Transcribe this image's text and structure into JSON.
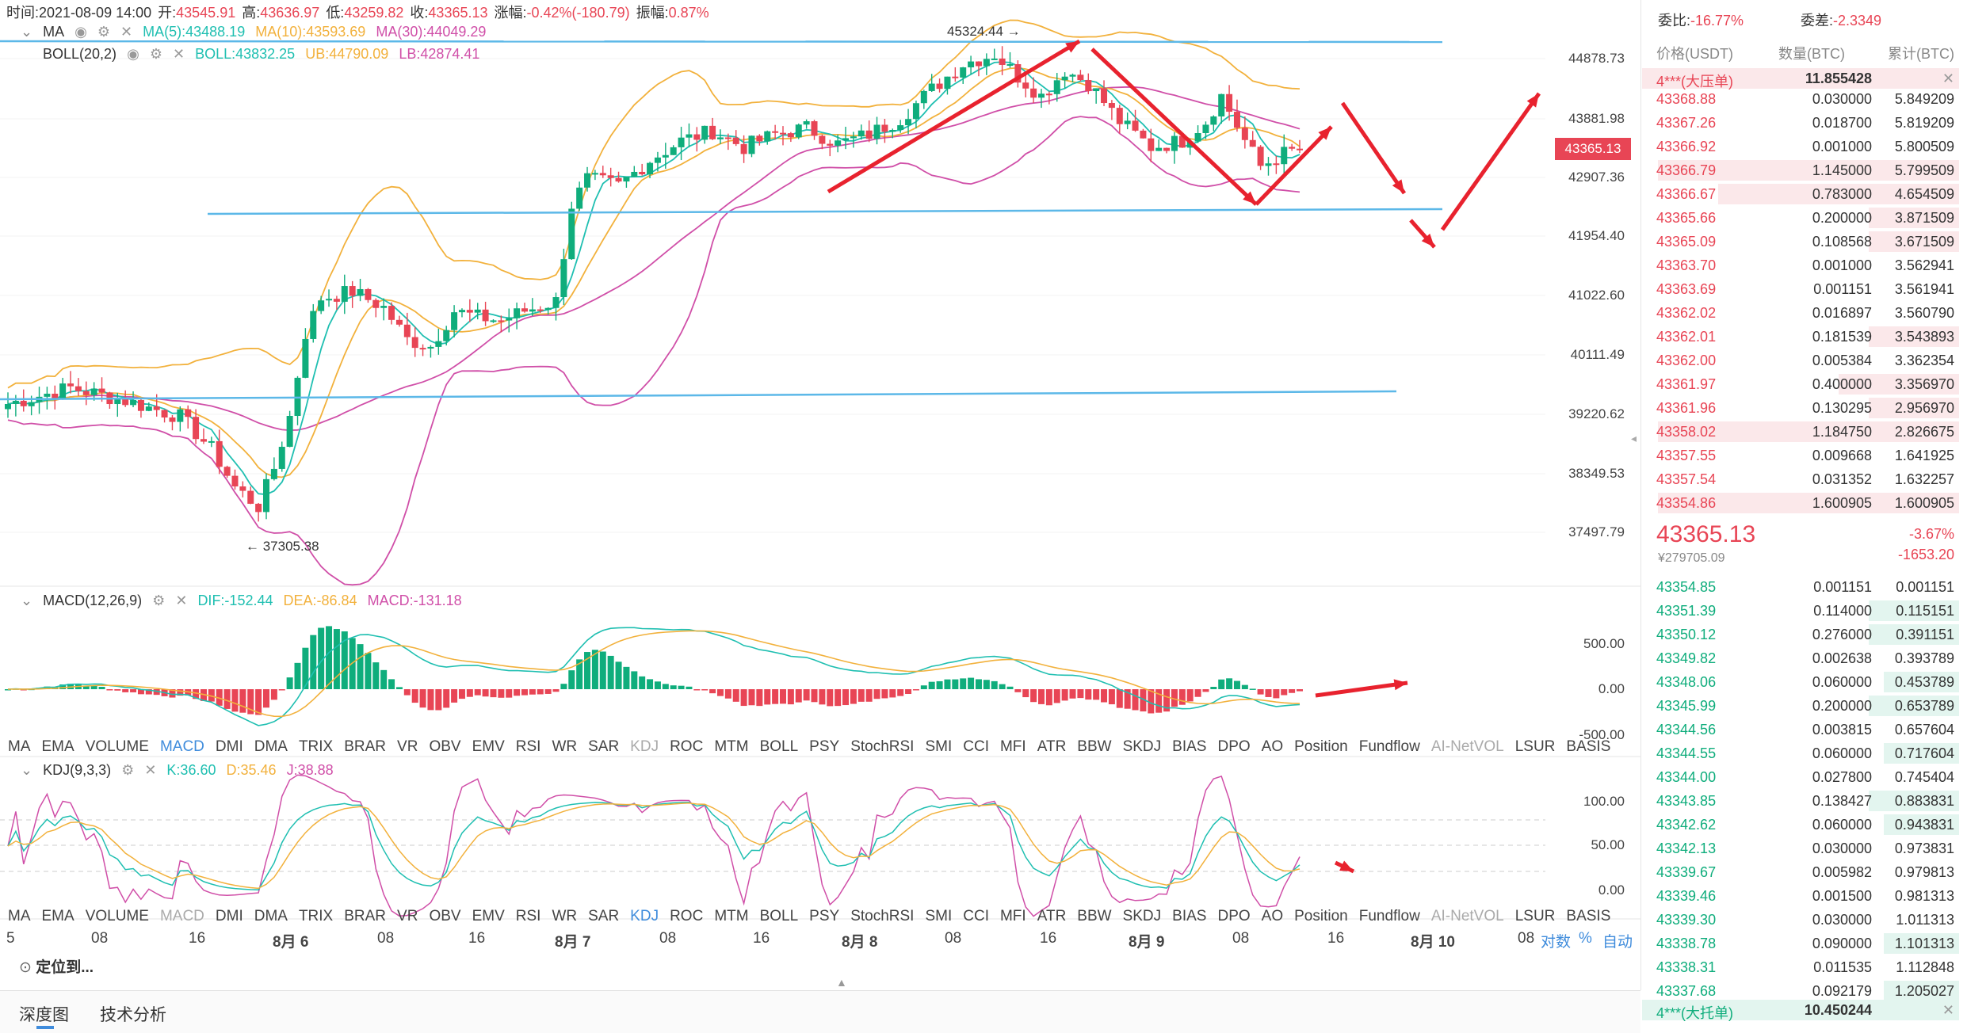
{
  "info_bar": {
    "time": "时间:2021-08-09 14:00",
    "open_label": "开:",
    "open": "43545.91",
    "high_label": "高:",
    "high": "43636.97",
    "low_label": "低:",
    "low": "43259.82",
    "close_label": "收:",
    "close": "43365.13",
    "change_label": "涨幅:",
    "change": "-0.42%(-180.79)",
    "amp_label": "振幅:",
    "amp": "0.87%"
  },
  "ma_legend": {
    "name": "MA",
    "ma5": "MA(5):43488.19",
    "ma10": "MA(10):43593.69",
    "ma30": "MA(30):44049.29"
  },
  "boll_legend": {
    "name": "BOLL(20,2)",
    "boll": "BOLL:43832.25",
    "ub": "UB:44790.09",
    "lb": "LB:42874.41"
  },
  "macd_legend": {
    "name": "MACD(12,26,9)",
    "dif": "DIF:-152.44",
    "dea": "DEA:-86.84",
    "macd": "MACD:-131.18"
  },
  "kdj_legend": {
    "name": "KDJ(9,3,3)",
    "k": "K:36.60",
    "d": "D:35.46",
    "j": "J:38.88"
  },
  "annotations": {
    "high": "45324.44 →",
    "low": "← 37305.38"
  },
  "price_axis": [
    "44878.73",
    "43881.98",
    "42907.36",
    "41954.40",
    "41022.60",
    "40111.49",
    "39220.62",
    "38349.53",
    "37497.79"
  ],
  "current_price_tag": "43365.13",
  "macd_axis": [
    "500.00",
    "0.00",
    "-500.00"
  ],
  "kdj_axis": [
    "100.00",
    "50.00",
    "0.00"
  ],
  "indicator_tabs": [
    "MA",
    "EMA",
    "VOLUME",
    "MACD",
    "DMI",
    "DMA",
    "TRIX",
    "BRAR",
    "VR",
    "OBV",
    "EMV",
    "RSI",
    "WR",
    "SAR",
    "KDJ",
    "ROC",
    "MTM",
    "BOLL",
    "PSY",
    "StochRSI",
    "SMI",
    "CCI",
    "MFI",
    "ATR",
    "BBW",
    "SKDJ",
    "BIAS",
    "DPO",
    "AO",
    "Position",
    "Fundflow",
    "AI-NetVOL",
    "LSUR",
    "BASIS"
  ],
  "time_axis": [
    "5",
    "08",
    "16",
    "8月 6",
    "08",
    "16",
    "8月 7",
    "08",
    "16",
    "8月 8",
    "08",
    "16",
    "8月 9",
    "08",
    "16",
    "8月 10",
    "08"
  ],
  "axis_controls": [
    "对数",
    "%",
    "自动"
  ],
  "locate_label": "定位到...",
  "bottom_tabs": [
    "深度图",
    "技术分析"
  ],
  "colors": {
    "up": "#0fad7c",
    "down": "#e84555",
    "accent": "#3f8cdc",
    "ma5": "#1fbfb1",
    "ma10": "#f2b13c",
    "ma30": "#d04fa8",
    "boll": "#5cb8e8"
  },
  "order_book": {
    "ratio_label": "委比:",
    "ratio": "-16.77%",
    "diff_label": "委差:",
    "diff": "-2.3349",
    "headers": [
      "价格(USDT)",
      "数量(BTC)",
      "累计(BTC)"
    ],
    "ask_wall": {
      "label": "4***(大压单)",
      "qty": "11.855428"
    },
    "asks": [
      {
        "price": "43368.88",
        "qty": "0.030000",
        "cum": "5.849209",
        "fill": 0
      },
      {
        "price": "43367.26",
        "qty": "0.018700",
        "cum": "5.819209",
        "fill": 0
      },
      {
        "price": "43366.92",
        "qty": "0.001000",
        "cum": "5.800509",
        "fill": 0
      },
      {
        "price": "43366.79",
        "qty": "1.145000",
        "cum": "5.799509",
        "fill": 1.0
      },
      {
        "price": "43366.67",
        "qty": "0.783000",
        "cum": "4.654509",
        "fill": 0.8
      },
      {
        "price": "43365.66",
        "qty": "0.200000",
        "cum": "3.871509",
        "fill": 0.3
      },
      {
        "price": "43365.09",
        "qty": "0.108568",
        "cum": "3.671509",
        "fill": 0.3
      },
      {
        "price": "43363.70",
        "qty": "0.001000",
        "cum": "3.562941",
        "fill": 0
      },
      {
        "price": "43363.69",
        "qty": "0.001151",
        "cum": "3.561941",
        "fill": 0
      },
      {
        "price": "43362.02",
        "qty": "0.016897",
        "cum": "3.560790",
        "fill": 0
      },
      {
        "price": "43362.01",
        "qty": "0.181539",
        "cum": "3.543893",
        "fill": 0.3
      },
      {
        "price": "43362.00",
        "qty": "0.005384",
        "cum": "3.362354",
        "fill": 0
      },
      {
        "price": "43361.97",
        "qty": "0.400000",
        "cum": "3.356970",
        "fill": 0.4
      },
      {
        "price": "43361.96",
        "qty": "0.130295",
        "cum": "2.956970",
        "fill": 0.3
      },
      {
        "price": "43358.02",
        "qty": "1.184750",
        "cum": "2.826675",
        "fill": 1.0
      },
      {
        "price": "43357.55",
        "qty": "0.009668",
        "cum": "1.641925",
        "fill": 0
      },
      {
        "price": "43357.54",
        "qty": "0.031352",
        "cum": "1.632257",
        "fill": 0
      },
      {
        "price": "43354.86",
        "qty": "1.600905",
        "cum": "1.600905",
        "fill": 1.0
      }
    ],
    "last_price": "43365.13",
    "last_change_pct": "-3.67%",
    "last_cny": "¥279705.09",
    "last_change_abs": "-1653.20",
    "bids": [
      {
        "price": "43354.85",
        "qty": "0.001151",
        "cum": "0.001151",
        "fill": 0
      },
      {
        "price": "43351.39",
        "qty": "0.114000",
        "cum": "0.115151",
        "fill": 0.3
      },
      {
        "price": "43350.12",
        "qty": "0.276000",
        "cum": "0.391151",
        "fill": 0.3
      },
      {
        "price": "43349.82",
        "qty": "0.002638",
        "cum": "0.393789",
        "fill": 0
      },
      {
        "price": "43348.06",
        "qty": "0.060000",
        "cum": "0.453789",
        "fill": 0.25
      },
      {
        "price": "43345.99",
        "qty": "0.200000",
        "cum": "0.653789",
        "fill": 0.3
      },
      {
        "price": "43344.56",
        "qty": "0.003815",
        "cum": "0.657604",
        "fill": 0
      },
      {
        "price": "43344.55",
        "qty": "0.060000",
        "cum": "0.717604",
        "fill": 0.25
      },
      {
        "price": "43344.00",
        "qty": "0.027800",
        "cum": "0.745404",
        "fill": 0
      },
      {
        "price": "43343.85",
        "qty": "0.138427",
        "cum": "0.883831",
        "fill": 0.3
      },
      {
        "price": "43342.62",
        "qty": "0.060000",
        "cum": "0.943831",
        "fill": 0.25
      },
      {
        "price": "43342.13",
        "qty": "0.030000",
        "cum": "0.973831",
        "fill": 0
      },
      {
        "price": "43339.67",
        "qty": "0.005982",
        "cum": "0.979813",
        "fill": 0
      },
      {
        "price": "43339.46",
        "qty": "0.001500",
        "cum": "0.981313",
        "fill": 0
      },
      {
        "price": "43339.30",
        "qty": "0.030000",
        "cum": "1.011313",
        "fill": 0
      },
      {
        "price": "43338.78",
        "qty": "0.090000",
        "cum": "1.101313",
        "fill": 0.25
      },
      {
        "price": "43338.31",
        "qty": "0.011535",
        "cum": "1.112848",
        "fill": 0
      },
      {
        "price": "43337.68",
        "qty": "0.092179",
        "cum": "1.205027",
        "fill": 0.25
      }
    ],
    "bid_wall": {
      "label": "4***(大托单)",
      "qty": "10.450244"
    }
  }
}
